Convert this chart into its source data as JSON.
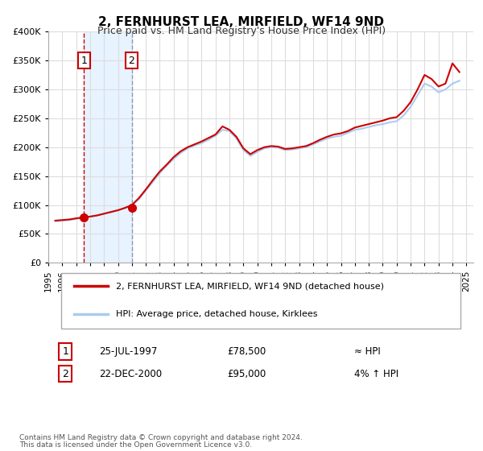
{
  "title": "2, FERNHURST LEA, MIRFIELD, WF14 9ND",
  "subtitle": "Price paid vs. HM Land Registry's House Price Index (HPI)",
  "background_color": "#ffffff",
  "plot_bg_color": "#ffffff",
  "grid_color": "#dddddd",
  "ylim": [
    0,
    400000
  ],
  "yticks": [
    0,
    50000,
    100000,
    150000,
    200000,
    250000,
    300000,
    350000,
    400000
  ],
  "ytick_labels": [
    "£0",
    "£50K",
    "£100K",
    "£150K",
    "£200K",
    "£250K",
    "£300K",
    "£350K",
    "£400K"
  ],
  "xlim_start": 1995.0,
  "xlim_end": 2025.5,
  "xticks": [
    1995,
    1996,
    1997,
    1998,
    1999,
    2000,
    2001,
    2002,
    2003,
    2004,
    2005,
    2006,
    2007,
    2008,
    2009,
    2010,
    2011,
    2012,
    2013,
    2014,
    2015,
    2016,
    2017,
    2018,
    2019,
    2020,
    2021,
    2022,
    2023,
    2024,
    2025
  ],
  "red_line_color": "#cc0000",
  "blue_line_color": "#aaccee",
  "sale1_x": 1997.56,
  "sale1_y": 78500,
  "sale1_label": "1",
  "sale1_date": "25-JUL-1997",
  "sale1_price": "£78,500",
  "sale1_hpi": "≈ HPI",
  "sale2_x": 2000.98,
  "sale2_y": 95000,
  "sale2_label": "2",
  "sale2_date": "22-DEC-2000",
  "sale2_price": "£95,000",
  "sale2_hpi": "4% ↑ HPI",
  "legend_label_red": "2, FERNHURST LEA, MIRFIELD, WF14 9ND (detached house)",
  "legend_label_blue": "HPI: Average price, detached house, Kirklees",
  "footer1": "Contains HM Land Registry data © Crown copyright and database right 2024.",
  "footer2": "This data is licensed under the Open Government Licence v3.0.",
  "shaded_region_x1": 1997.56,
  "shaded_region_x2": 2000.98,
  "hpi_data": {
    "years": [
      1995.5,
      1996.0,
      1996.5,
      1997.0,
      1997.5,
      1998.0,
      1998.5,
      1999.0,
      1999.5,
      2000.0,
      2000.5,
      2001.0,
      2001.5,
      2002.0,
      2002.5,
      2003.0,
      2003.5,
      2004.0,
      2004.5,
      2005.0,
      2005.5,
      2006.0,
      2006.5,
      2007.0,
      2007.5,
      2008.0,
      2008.5,
      2009.0,
      2009.5,
      2010.0,
      2010.5,
      2011.0,
      2011.5,
      2012.0,
      2012.5,
      2013.0,
      2013.5,
      2014.0,
      2014.5,
      2015.0,
      2015.5,
      2016.0,
      2016.5,
      2017.0,
      2017.5,
      2018.0,
      2018.5,
      2019.0,
      2019.5,
      2020.0,
      2020.5,
      2021.0,
      2021.5,
      2022.0,
      2022.5,
      2023.0,
      2023.5,
      2024.0,
      2024.5
    ],
    "values": [
      72000,
      73000,
      74000,
      76000,
      78500,
      80000,
      82000,
      85000,
      88000,
      91000,
      95000,
      100000,
      110000,
      125000,
      140000,
      155000,
      168000,
      180000,
      190000,
      198000,
      203000,
      207000,
      213000,
      220000,
      230000,
      228000,
      215000,
      195000,
      185000,
      192000,
      198000,
      200000,
      199000,
      195000,
      196000,
      198000,
      200000,
      205000,
      210000,
      215000,
      218000,
      220000,
      225000,
      230000,
      232000,
      235000,
      238000,
      240000,
      243000,
      245000,
      255000,
      270000,
      290000,
      310000,
      305000,
      295000,
      300000,
      310000,
      315000
    ]
  },
  "red_data": {
    "years": [
      1995.5,
      1996.0,
      1996.5,
      1997.0,
      1997.5,
      1998.0,
      1998.5,
      1999.0,
      1999.5,
      2000.0,
      2000.5,
      2001.0,
      2001.5,
      2002.0,
      2002.5,
      2003.0,
      2003.5,
      2004.0,
      2004.5,
      2005.0,
      2005.5,
      2006.0,
      2006.5,
      2007.0,
      2007.5,
      2008.0,
      2008.5,
      2009.0,
      2009.5,
      2010.0,
      2010.5,
      2011.0,
      2011.5,
      2012.0,
      2012.5,
      2013.0,
      2013.5,
      2014.0,
      2014.5,
      2015.0,
      2015.5,
      2016.0,
      2016.5,
      2017.0,
      2017.5,
      2018.0,
      2018.5,
      2019.0,
      2019.5,
      2020.0,
      2020.5,
      2021.0,
      2021.5,
      2022.0,
      2022.5,
      2023.0,
      2023.5,
      2024.0,
      2024.5
    ],
    "values": [
      73000,
      74000,
      75000,
      77000,
      78500,
      80000,
      82000,
      85000,
      88000,
      91000,
      95000,
      100000,
      112000,
      127000,
      143000,
      158000,
      170000,
      183000,
      193000,
      200000,
      205000,
      210000,
      216000,
      222000,
      236000,
      230000,
      218000,
      198000,
      188000,
      195000,
      200000,
      202000,
      201000,
      197000,
      198000,
      200000,
      202000,
      207000,
      213000,
      218000,
      222000,
      224000,
      228000,
      234000,
      237000,
      240000,
      243000,
      246000,
      250000,
      252000,
      263000,
      278000,
      300000,
      325000,
      318000,
      305000,
      310000,
      345000,
      330000
    ]
  }
}
